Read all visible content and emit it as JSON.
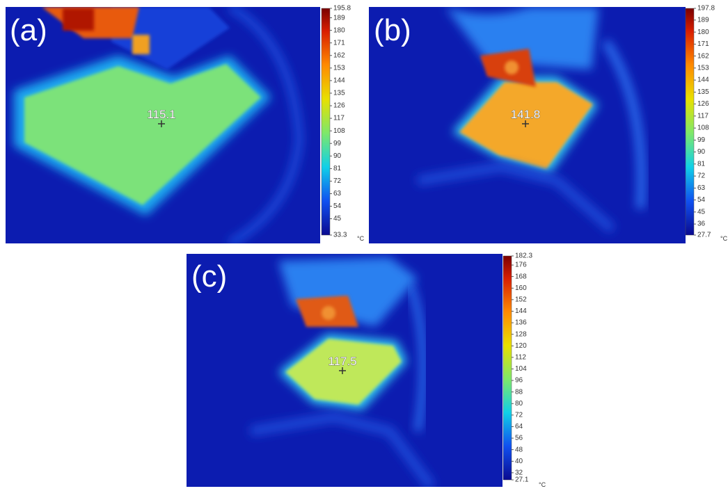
{
  "panels": [
    {
      "label": "(a)",
      "reading": "115.1",
      "unit": "°C",
      "ticks": [
        "195.8",
        "189",
        "180",
        "171",
        "162",
        "153",
        "144",
        "135",
        "126",
        "117",
        "108",
        "99",
        "90",
        "81",
        "72",
        "63",
        "54",
        "45",
        "33.3"
      ]
    },
    {
      "label": "(b)",
      "reading": "141.8",
      "unit": "°C",
      "ticks": [
        "197.8",
        "189",
        "180",
        "171",
        "162",
        "153",
        "144",
        "135",
        "126",
        "117",
        "108",
        "99",
        "90",
        "81",
        "72",
        "63",
        "54",
        "45",
        "36",
        "27.7"
      ]
    },
    {
      "label": "(c)",
      "reading": "117.5",
      "unit": "°C",
      "ticks": [
        "182.3",
        "176",
        "168",
        "160",
        "152",
        "144",
        "136",
        "128",
        "120",
        "112",
        "104",
        "96",
        "88",
        "80",
        "72",
        "64",
        "56",
        "48",
        "40",
        "32",
        "27.1"
      ]
    }
  ]
}
